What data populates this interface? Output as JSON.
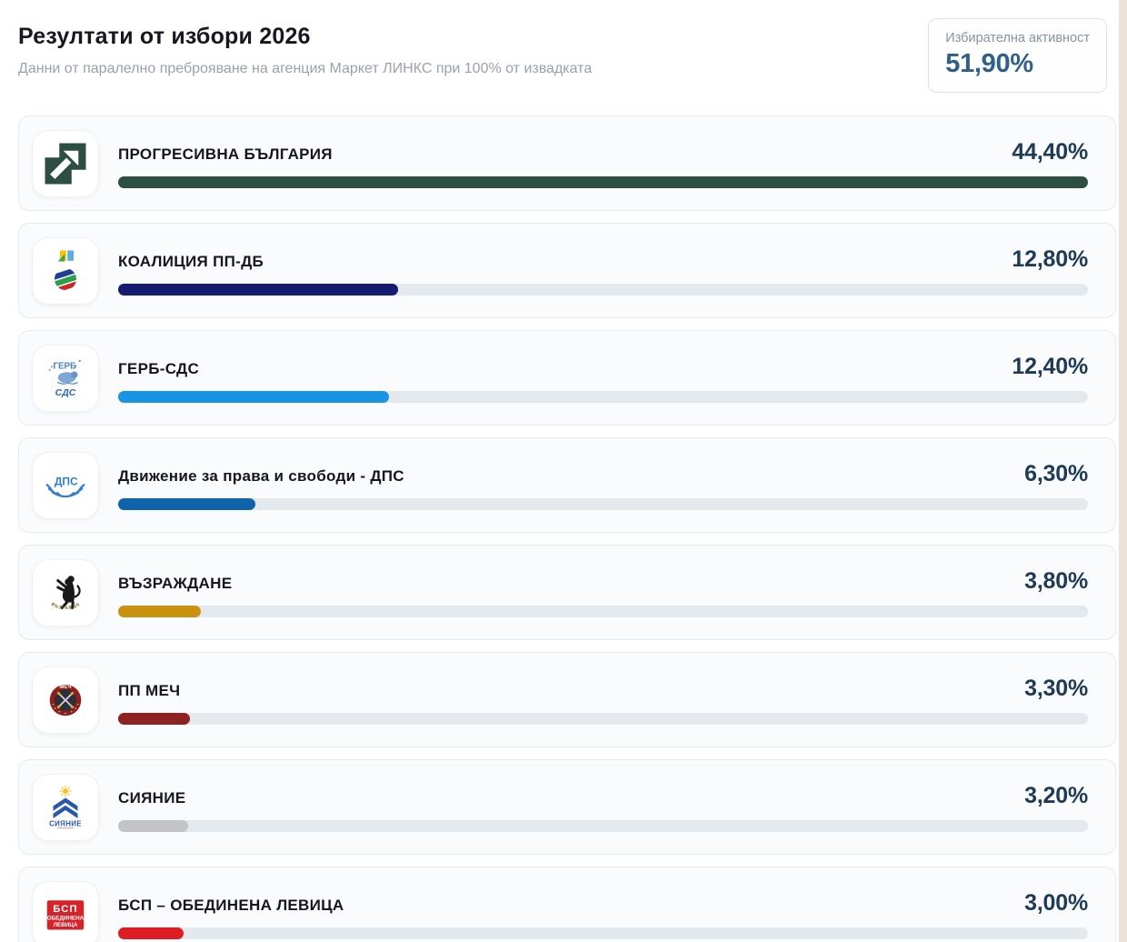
{
  "page": {
    "title": "Резултати от избори 2026",
    "subtitle": "Данни от паралелно преброяване на агенция Маркет ЛИНКС при 100% от извадката"
  },
  "turnout": {
    "label": "Избирателна активност",
    "value": "51,90%"
  },
  "parties": [
    {
      "name": "ПРОГРЕСИВНА БЪЛГАРИЯ",
      "percent": "44,40%",
      "value": 44.4,
      "color": "#2d4f43",
      "logo": "progresivna-bulgaria-logo"
    },
    {
      "name": "КОАЛИЦИЯ ПП-ДБ",
      "percent": "12,80%",
      "value": 12.8,
      "color": "#141b70",
      "logo": "pp-db-logo"
    },
    {
      "name": "ГЕРБ-СДС",
      "percent": "12,40%",
      "value": 12.4,
      "color": "#1a93e3",
      "logo": "gerb-sds-logo"
    },
    {
      "name": "Движение за права и свободи - ДПС",
      "percent": "6,30%",
      "value": 6.3,
      "color": "#0f63ab",
      "logo": "dps-logo"
    },
    {
      "name": "ВЪЗРАЖДАНЕ",
      "percent": "3,80%",
      "value": 3.8,
      "color": "#c9930f",
      "logo": "vazrazhdane-logo"
    },
    {
      "name": "ПП МЕЧ",
      "percent": "3,30%",
      "value": 3.3,
      "color": "#8e2121",
      "logo": "mech-logo"
    },
    {
      "name": "СИЯНИЕ",
      "percent": "3,20%",
      "value": 3.2,
      "color": "#c4c4c6",
      "logo": "siyanie-logo"
    },
    {
      "name": "БСП – ОБЕДИНЕНА ЛЕВИЦА",
      "percent": "3,00%",
      "value": 3.0,
      "color": "#dd1c23",
      "logo": "bsp-logo"
    }
  ],
  "chart_data": {
    "type": "bar",
    "orientation": "horizontal",
    "title": "Резултати от избори 2026",
    "subtitle": "Данни от паралелно преброяване на агенция Маркет ЛИНКС при 100% от извадката",
    "turnout_label": "Избирателна активност",
    "turnout_value": 51.9,
    "turnout_value_label": "51,90%",
    "categories": [
      "ПРОГРЕСИВНА БЪЛГАРИЯ",
      "КОАЛИЦИЯ ПП-ДБ",
      "ГЕРБ-СДС",
      "Движение за права и свободи - ДПС",
      "ВЪЗРАЖДАНЕ",
      "ПП МЕЧ",
      "СИЯНИЕ",
      "БСП – ОБЕДИНЕНА ЛЕВИЦА"
    ],
    "values": [
      44.4,
      12.8,
      12.4,
      6.3,
      3.8,
      3.3,
      3.2,
      3.0
    ],
    "value_labels": [
      "44,40%",
      "12,80%",
      "12,40%",
      "6,30%",
      "3,80%",
      "3,30%",
      "3,20%",
      "3,00%"
    ],
    "unit": "percent",
    "xlim": [
      0,
      44.4
    ],
    "bar_scaling": "bar width relative to leading value 44.4",
    "bar_colors": [
      "#2d4f43",
      "#141b70",
      "#1a93e3",
      "#0f63ab",
      "#c9930f",
      "#8e2121",
      "#c4c4c6",
      "#dd1c23"
    ],
    "track_color": "#e4e9ee",
    "value_label_color": "#1d3a56"
  }
}
